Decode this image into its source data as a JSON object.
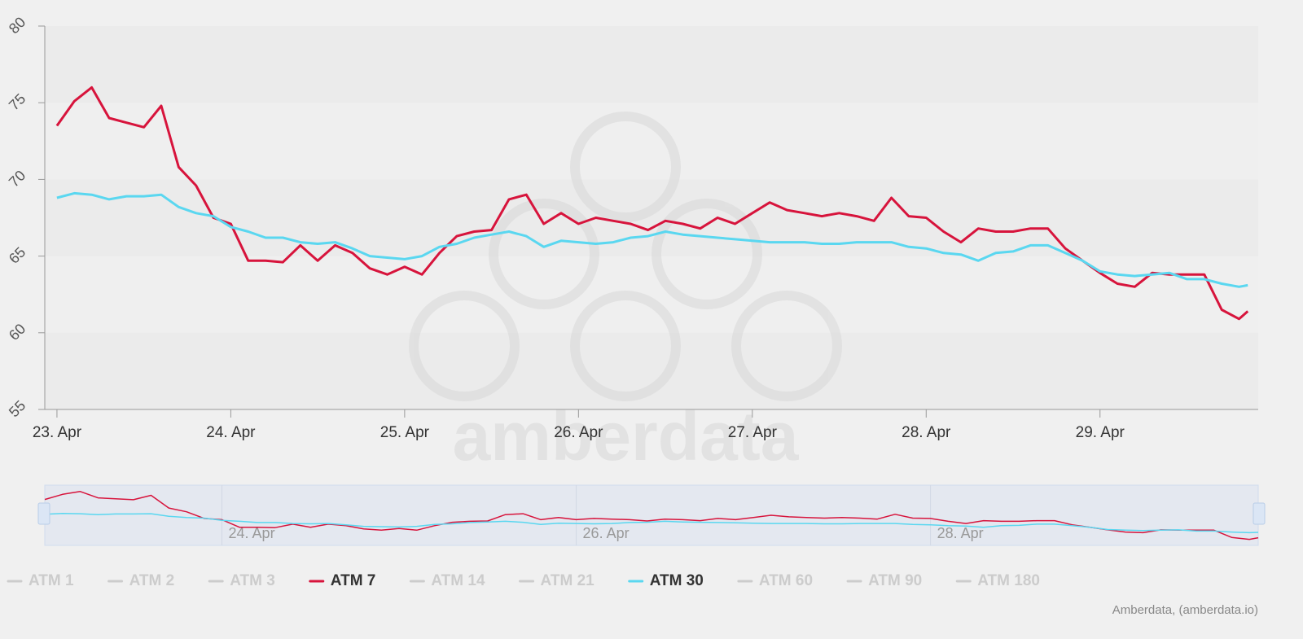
{
  "chart_data": {
    "type": "line",
    "x": [
      0,
      0.1,
      0.2,
      0.3,
      0.4,
      0.5,
      0.6,
      0.7,
      0.8,
      0.9,
      1.0,
      1.1,
      1.2,
      1.3,
      1.4,
      1.5,
      1.6,
      1.7,
      1.8,
      1.9,
      2.0,
      2.1,
      2.2,
      2.3,
      2.4,
      2.5,
      2.6,
      2.7,
      2.8,
      2.9,
      3.0,
      3.1,
      3.2,
      3.3,
      3.4,
      3.5,
      3.6,
      3.7,
      3.8,
      3.9,
      4.0,
      4.1,
      4.2,
      4.3,
      4.4,
      4.5,
      4.6,
      4.7,
      4.8,
      4.9,
      5.0,
      5.1,
      5.2,
      5.3,
      5.4,
      5.5,
      5.6,
      5.7,
      5.8,
      5.9,
      6.0,
      6.1,
      6.2,
      6.3,
      6.4,
      6.5,
      6.6,
      6.7,
      6.8,
      6.85
    ],
    "series": [
      {
        "name": "ATM 1",
        "visible": false
      },
      {
        "name": "ATM 2",
        "visible": false
      },
      {
        "name": "ATM 3",
        "visible": false
      },
      {
        "name": "ATM 7",
        "visible": true,
        "color": "#d7143c",
        "values": [
          73.5,
          75.1,
          76.0,
          74.0,
          73.7,
          73.4,
          74.8,
          70.8,
          69.6,
          67.5,
          67.1,
          64.7,
          64.7,
          64.6,
          65.7,
          64.7,
          65.7,
          65.2,
          64.2,
          63.8,
          64.3,
          63.8,
          65.2,
          66.3,
          66.6,
          66.7,
          68.7,
          69.0,
          67.1,
          67.8,
          67.1,
          67.5,
          67.3,
          67.1,
          66.7,
          67.3,
          67.1,
          66.8,
          67.5,
          67.1,
          67.8,
          68.5,
          68.0,
          67.8,
          67.6,
          67.8,
          67.6,
          67.3,
          68.8,
          67.6,
          67.5,
          66.6,
          65.9,
          66.8,
          66.6,
          66.6,
          66.8,
          66.8,
          65.5,
          64.7,
          63.9,
          63.2,
          63.0,
          63.9,
          63.8,
          63.8,
          63.8,
          61.5,
          60.9,
          61.4
        ]
      },
      {
        "name": "ATM 14",
        "visible": false
      },
      {
        "name": "ATM 21",
        "visible": false
      },
      {
        "name": "ATM 30",
        "visible": true,
        "color": "#5ad7f0",
        "values": [
          68.8,
          69.1,
          69.0,
          68.7,
          68.9,
          68.9,
          69.0,
          68.2,
          67.8,
          67.6,
          66.9,
          66.6,
          66.2,
          66.2,
          65.9,
          65.8,
          65.9,
          65.5,
          65.0,
          64.9,
          64.8,
          65.0,
          65.6,
          65.8,
          66.2,
          66.4,
          66.6,
          66.3,
          65.6,
          66.0,
          65.9,
          65.8,
          65.9,
          66.2,
          66.3,
          66.6,
          66.4,
          66.3,
          66.2,
          66.1,
          66.0,
          65.9,
          65.9,
          65.9,
          65.8,
          65.8,
          65.9,
          65.9,
          65.9,
          65.6,
          65.5,
          65.2,
          65.1,
          64.7,
          65.2,
          65.3,
          65.7,
          65.7,
          65.2,
          64.7,
          64.0,
          63.8,
          63.7,
          63.8,
          63.9,
          63.5,
          63.5,
          63.2,
          63.0,
          63.1
        ]
      },
      {
        "name": "ATM 60",
        "visible": false
      },
      {
        "name": "ATM 90",
        "visible": false
      },
      {
        "name": "ATM 180",
        "visible": false
      }
    ],
    "xlim": [
      -0.07,
      6.91
    ],
    "xticks": [
      {
        "value": 0,
        "label": "23. Apr"
      },
      {
        "value": 1,
        "label": "24. Apr"
      },
      {
        "value": 2,
        "label": "25. Apr"
      },
      {
        "value": 3,
        "label": "26. Apr"
      },
      {
        "value": 4,
        "label": "27. Apr"
      },
      {
        "value": 5,
        "label": "28. Apr"
      },
      {
        "value": 6,
        "label": "29. Apr"
      }
    ],
    "ylim": [
      55,
      80
    ],
    "yticks": [
      55,
      60,
      65,
      70,
      75,
      80
    ],
    "navigator": {
      "xlim": [
        0,
        6.85
      ],
      "ylim": [
        59.5,
        77.5
      ],
      "xticks": [
        {
          "value": 1,
          "label": "24. Apr"
        },
        {
          "value": 3,
          "label": "26. Apr"
        },
        {
          "value": 5,
          "label": "28. Apr"
        }
      ]
    },
    "hidden_color": "#cccccc",
    "watermark": "amberdata",
    "credits": "Amberdata, (amberdata.io)"
  }
}
